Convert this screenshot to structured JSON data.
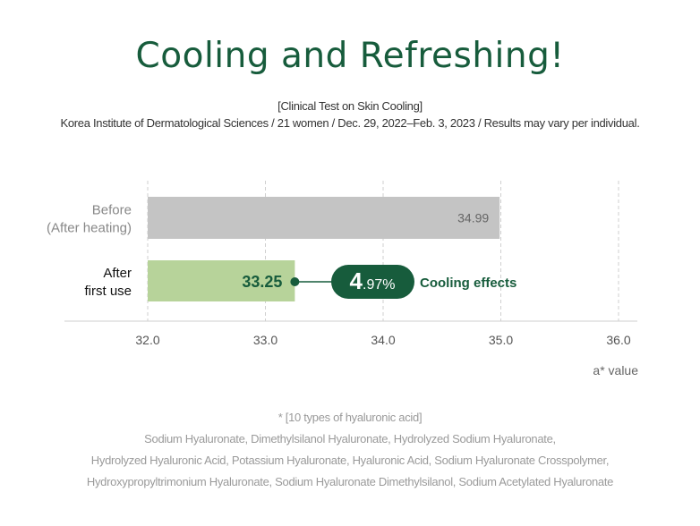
{
  "title": "Cooling and Refreshing!",
  "subtitle_1": "[Clinical Test on Skin Cooling]",
  "subtitle_2": "Korea Institute of Dermatological Sciences / 21 women / Dec. 29, 2022–Feb. 3, 2023 / Results may vary per individual.",
  "footnote": {
    "heading": "* [10 types of hyaluronic acid]",
    "lines": [
      "Sodium Hyaluronate, Dimethylsilanol Hyaluronate, Hydrolyzed Sodium Hyaluronate,",
      "Hydrolyzed Hyaluronic Acid, Potassium Hyaluronate, Hyaluronic Acid, Sodium Hyaluronate Crosspolymer,",
      "Hydroxypropyltrimonium Hyaluronate, Sodium Hyaluronate Dimethylsilanol, Sodium Acetylated Hyaluronate"
    ]
  },
  "colors": {
    "accent": "#175c3c",
    "before_bar": "#c4c4c4",
    "after_bar": "#b7d39a"
  },
  "chart_data": {
    "type": "bar",
    "orientation": "horizontal",
    "categories": [
      [
        "Before",
        "(After heating)"
      ],
      [
        "After",
        "first use"
      ]
    ],
    "values": [
      34.99,
      33.25
    ],
    "value_labels": [
      "34.99",
      "33.25"
    ],
    "xlim": [
      32.0,
      36.0
    ],
    "xticks": [
      "32.0",
      "33.0",
      "34.0",
      "35.0",
      "36.0"
    ],
    "xlabel": "a* value",
    "grid": "vertical-dashed",
    "annotation": {
      "value_big": "4",
      "value_small": ".97%",
      "text": "Cooling effects"
    }
  }
}
